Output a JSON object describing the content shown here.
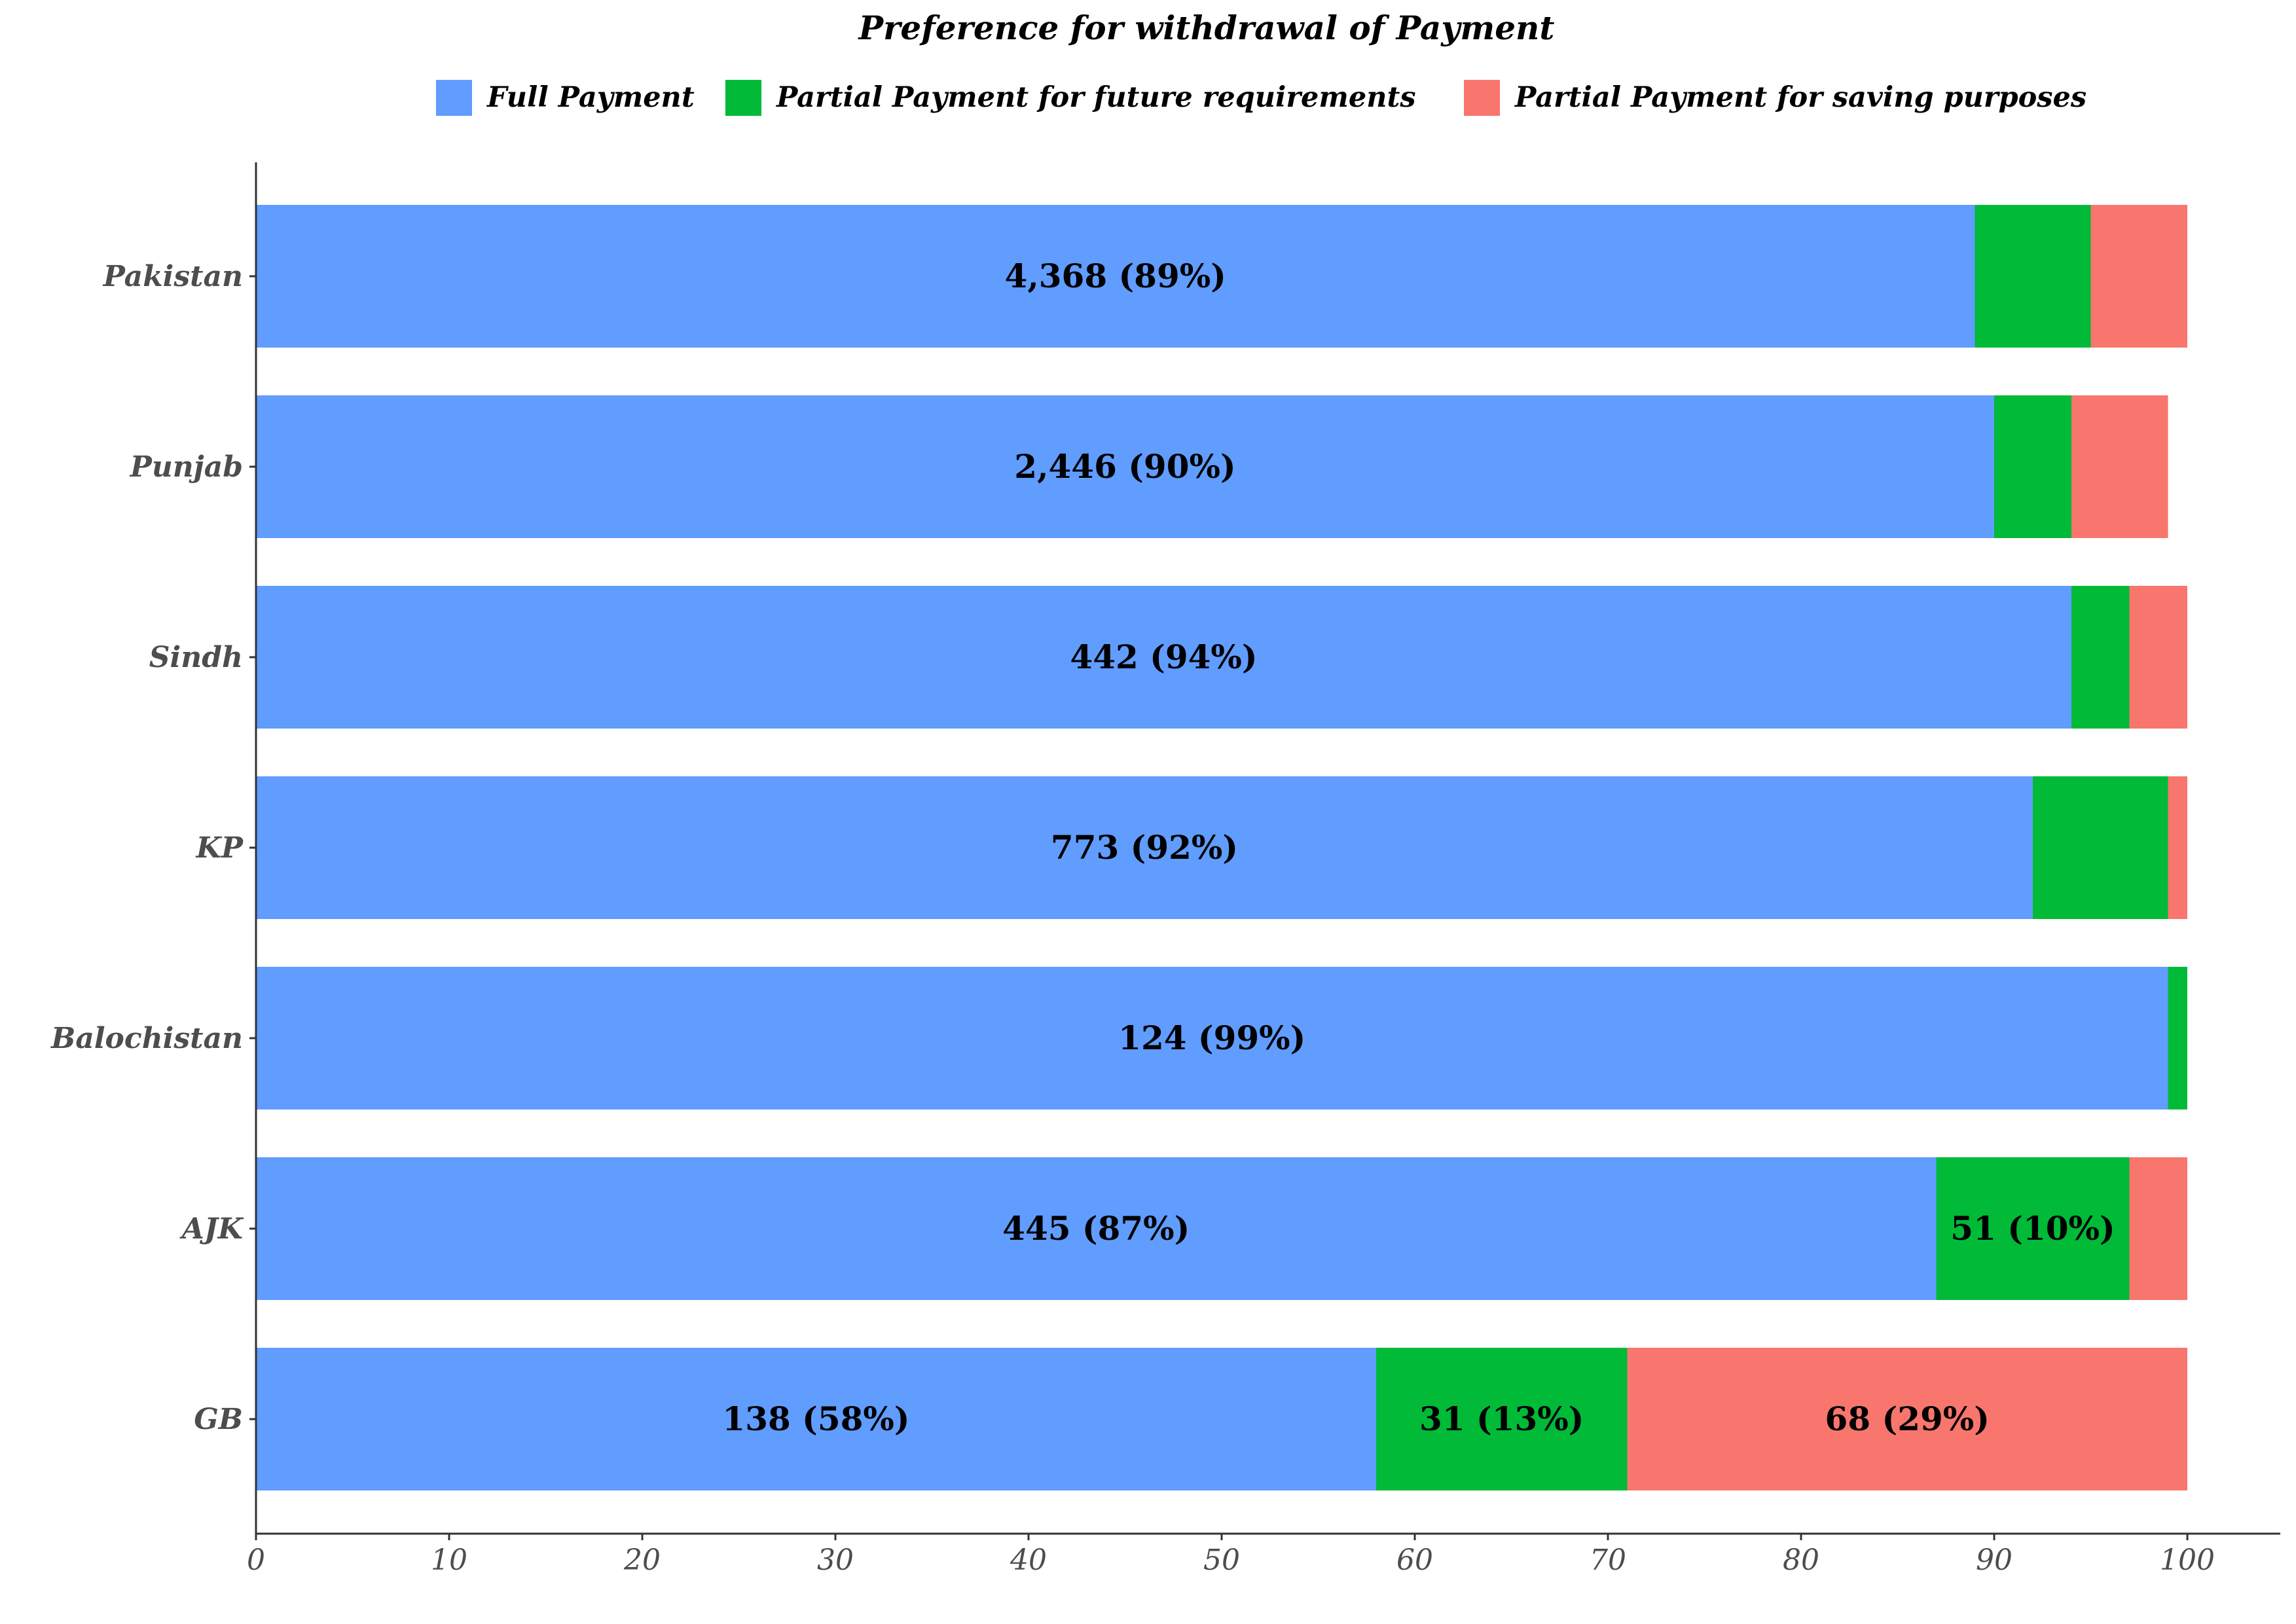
{
  "chart_data": {
    "type": "bar",
    "orientation": "horizontal",
    "stacked": true,
    "title": "Preference for withdrawal of Payment",
    "xlabel": "",
    "ylabel": "",
    "xlim": [
      0,
      105
    ],
    "xticks": [
      0,
      10,
      20,
      30,
      40,
      50,
      60,
      70,
      80,
      90,
      100
    ],
    "grid": false,
    "legend_position": "top",
    "categories": [
      "Pakistan",
      "Punjab",
      "Sindh",
      "KP",
      "Balochistan",
      "AJK",
      "GB"
    ],
    "series": [
      {
        "name": "Full Payment",
        "color": "#619CFF",
        "values": [
          89,
          90,
          94,
          92,
          99,
          87,
          58
        ],
        "labels": [
          "4,368 (89%)",
          "2,446 (90%)",
          "442 (94%)",
          "773 (92%)",
          "124 (99%)",
          "445 (87%)",
          "138 (58%)"
        ]
      },
      {
        "name": "Partial Payment for future requirements",
        "color": "#00BA38",
        "values": [
          6,
          4,
          3,
          7,
          1,
          10,
          13
        ],
        "labels": [
          "",
          "",
          "",
          "",
          "",
          "51 (10%)",
          "31 (13%)"
        ]
      },
      {
        "name": "Partial Payment for saving purposes",
        "color": "#F8766D",
        "values": [
          5,
          5,
          3,
          1,
          0,
          3,
          29
        ],
        "labels": [
          "",
          "",
          "",
          "",
          "",
          "",
          "68 (29%)"
        ]
      }
    ]
  }
}
